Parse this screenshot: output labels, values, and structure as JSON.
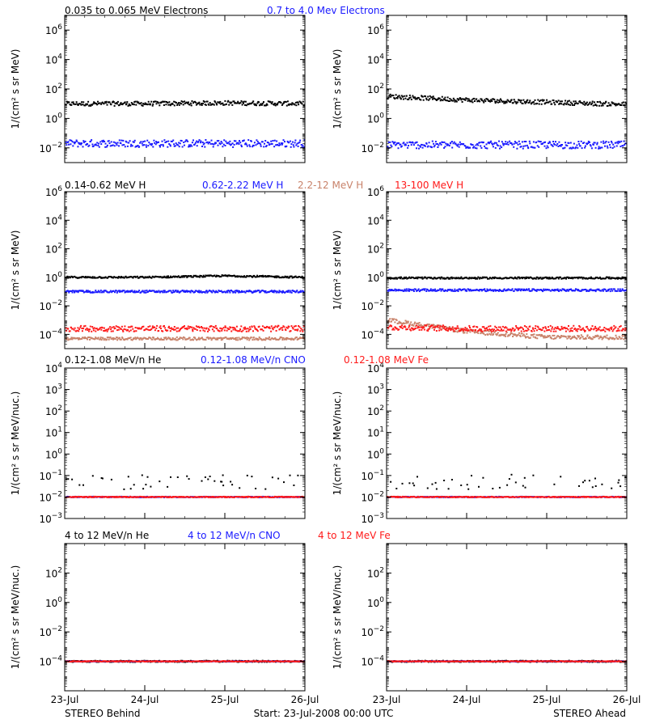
{
  "colors": {
    "black": "#000000",
    "blue": "#1a1aff",
    "tan": "#c8826a",
    "red": "#ff1a1a"
  },
  "x_axis": {
    "ticks": [
      "23-Jul",
      "24-Jul",
      "25-Jul",
      "26-Jul"
    ],
    "range_days": [
      0,
      3
    ]
  },
  "footer": {
    "left": "STEREO Behind",
    "center": "Start: 23-Jul-2008 00:00 UTC",
    "right": "STEREO Ahead"
  },
  "rows": [
    {
      "legend": [
        {
          "text": "0.035 to 0.065 MeV Electrons",
          "color": "black"
        },
        {
          "text": "0.7 to 4.0 Mev Electrons",
          "color": "blue"
        }
      ],
      "ylabel": "1/(cm² s sr MeV)",
      "ylim_log10": [
        -3,
        7
      ],
      "ytick_exponents": [
        -2,
        0,
        2,
        4,
        6
      ]
    },
    {
      "legend": [
        {
          "text": "0.14-0.62 MeV H",
          "color": "black"
        },
        {
          "text": "0.62-2.22 MeV H",
          "color": "blue"
        },
        {
          "text": "2.2-12 MeV H",
          "color": "tan"
        },
        {
          "text": "13-100 MeV H",
          "color": "red"
        }
      ],
      "ylabel": "1/(cm² s sr MeV)",
      "ylim_log10": [
        -5,
        6
      ],
      "ytick_exponents": [
        -4,
        -2,
        0,
        2,
        4,
        6
      ]
    },
    {
      "legend": [
        {
          "text": "0.12-1.08 MeV/n He",
          "color": "black"
        },
        {
          "text": "0.12-1.08 MeV/n CNO",
          "color": "blue"
        },
        {
          "text": "0.12-1.08 MeV Fe",
          "color": "red"
        }
      ],
      "ylabel": "1/(cm² s sr MeV/nuc.)",
      "ylim_log10": [
        -3,
        4
      ],
      "ytick_exponents": [
        -3,
        -2,
        -1,
        0,
        1,
        2,
        3,
        4
      ]
    },
    {
      "legend": [
        {
          "text": "4 to 12 MeV/n He",
          "color": "black"
        },
        {
          "text": "4 to 12 MeV/n CNO",
          "color": "blue"
        },
        {
          "text": "4 to 12 MeV Fe",
          "color": "red"
        }
      ],
      "ylabel": "1/(cm² s sr MeV/nuc.)",
      "ylim_log10": [
        -6,
        4
      ],
      "ytick_exponents": [
        -4,
        -2,
        0,
        2
      ]
    }
  ],
  "chart_data": [
    {
      "type": "scatter",
      "panel": "electrons-behind",
      "yscale": "log",
      "series": [
        {
          "name": "0.035 to 0.065 MeV Electrons",
          "color": "black",
          "level_log10": [
            1.0,
            1.0,
            1.05,
            1.0
          ],
          "spread": 0.15
        },
        {
          "name": "0.7 to 4.0 Mev Electrons",
          "color": "blue",
          "level_log10": [
            -1.7,
            -1.7,
            -1.7,
            -1.7
          ],
          "spread": 0.25
        }
      ]
    },
    {
      "type": "scatter",
      "panel": "electrons-ahead",
      "yscale": "log",
      "series": [
        {
          "name": "0.035 to 0.065 MeV Electrons",
          "color": "black",
          "level_log10": [
            1.5,
            1.25,
            1.1,
            0.95
          ],
          "spread": 0.15
        },
        {
          "name": "0.7 to 4.0 Mev Electrons",
          "color": "blue",
          "level_log10": [
            -1.8,
            -1.8,
            -1.8,
            -1.8
          ],
          "spread": 0.25
        }
      ]
    },
    {
      "type": "scatter",
      "panel": "protons-behind",
      "yscale": "log",
      "series": [
        {
          "name": "0.14-0.62 MeV H",
          "color": "black",
          "level_log10": [
            0.0,
            0.0,
            0.1,
            0.0
          ],
          "spread": 0.06
        },
        {
          "name": "0.62-2.22 MeV H",
          "color": "blue",
          "level_log10": [
            -1.0,
            -1.0,
            -1.0,
            -1.0
          ],
          "spread": 0.08
        },
        {
          "name": "2.2-12 MeV H",
          "color": "tan",
          "level_log10": [
            -4.3,
            -4.3,
            -4.3,
            -4.3
          ],
          "spread": 0.1
        },
        {
          "name": "13-100 MeV H",
          "color": "red",
          "level_log10": [
            -3.6,
            -3.6,
            -3.6,
            -3.6
          ],
          "spread": 0.2
        }
      ]
    },
    {
      "type": "scatter",
      "panel": "protons-ahead",
      "yscale": "log",
      "series": [
        {
          "name": "0.14-0.62 MeV H",
          "color": "black",
          "level_log10": [
            -0.05,
            -0.05,
            -0.05,
            -0.05
          ],
          "spread": 0.06
        },
        {
          "name": "0.62-2.22 MeV H",
          "color": "blue",
          "level_log10": [
            -0.9,
            -0.9,
            -0.9,
            -0.9
          ],
          "spread": 0.08
        },
        {
          "name": "2.2-12 MeV H",
          "color": "tan",
          "level_log10": [
            -3.0,
            -3.8,
            -4.2,
            -4.2
          ],
          "spread": 0.15
        },
        {
          "name": "13-100 MeV H",
          "color": "red",
          "level_log10": [
            -3.5,
            -3.6,
            -3.6,
            -3.6
          ],
          "spread": 0.2
        }
      ]
    },
    {
      "type": "scatter",
      "panel": "ions-low-behind",
      "yscale": "log",
      "series": [
        {
          "name": "0.12-1.08 MeV/n He",
          "color": "black",
          "level_log10": [
            -1.3,
            -1.3,
            -1.3,
            -1.3
          ],
          "spread": 0.35
        },
        {
          "name": "0.12-1.08 MeV/n CNO",
          "color": "blue",
          "level_log10": [
            -2.0,
            -2.0,
            -2.0,
            -2.0
          ],
          "spread": 0.02
        },
        {
          "name": "0.12-1.08 MeV Fe",
          "color": "red",
          "level_log10": [
            -2.0,
            -2.0,
            -2.0,
            -2.0
          ],
          "spread": 0.02
        }
      ]
    },
    {
      "type": "scatter",
      "panel": "ions-low-ahead",
      "yscale": "log",
      "series": [
        {
          "name": "0.12-1.08 MeV/n He",
          "color": "black",
          "level_log10": [
            -1.3,
            -1.3,
            -1.3,
            -1.3
          ],
          "spread": 0.35
        },
        {
          "name": "0.12-1.08 MeV/n CNO",
          "color": "blue",
          "level_log10": [
            -2.0,
            -2.0,
            -2.0,
            -2.0
          ],
          "spread": 0.02
        },
        {
          "name": "0.12-1.08 MeV Fe",
          "color": "red",
          "level_log10": [
            -2.0,
            -2.0,
            -2.0,
            -2.0
          ],
          "spread": 0.02
        }
      ]
    },
    {
      "type": "scatter",
      "panel": "ions-high-behind",
      "yscale": "log",
      "series": [
        {
          "name": "4 to 12 MeV/n He",
          "color": "black",
          "level_log10": [
            -4.0,
            -4.0,
            -4.0,
            -4.0
          ],
          "spread": 0.05
        },
        {
          "name": "4 to 12 MeV/n CNO",
          "color": "blue",
          "level_log10": [
            -4.0,
            -4.0,
            -4.0,
            -4.0
          ],
          "spread": 0.02
        },
        {
          "name": "4 to 12 MeV Fe",
          "color": "red",
          "level_log10": [
            -4.0,
            -4.0,
            -4.0,
            -4.0
          ],
          "spread": 0.02
        }
      ]
    },
    {
      "type": "scatter",
      "panel": "ions-high-ahead",
      "yscale": "log",
      "series": [
        {
          "name": "4 to 12 MeV/n He",
          "color": "black",
          "level_log10": [
            -4.0,
            -4.0,
            -4.0,
            -4.0
          ],
          "spread": 0.05
        },
        {
          "name": "4 to 12 MeV/n CNO",
          "color": "blue",
          "level_log10": [
            -4.0,
            -4.0,
            -4.0,
            -4.0
          ],
          "spread": 0.02
        },
        {
          "name": "4 to 12 MeV Fe",
          "color": "red",
          "level_log10": [
            -4.0,
            -4.0,
            -4.0,
            -4.0
          ],
          "spread": 0.02
        }
      ]
    }
  ]
}
